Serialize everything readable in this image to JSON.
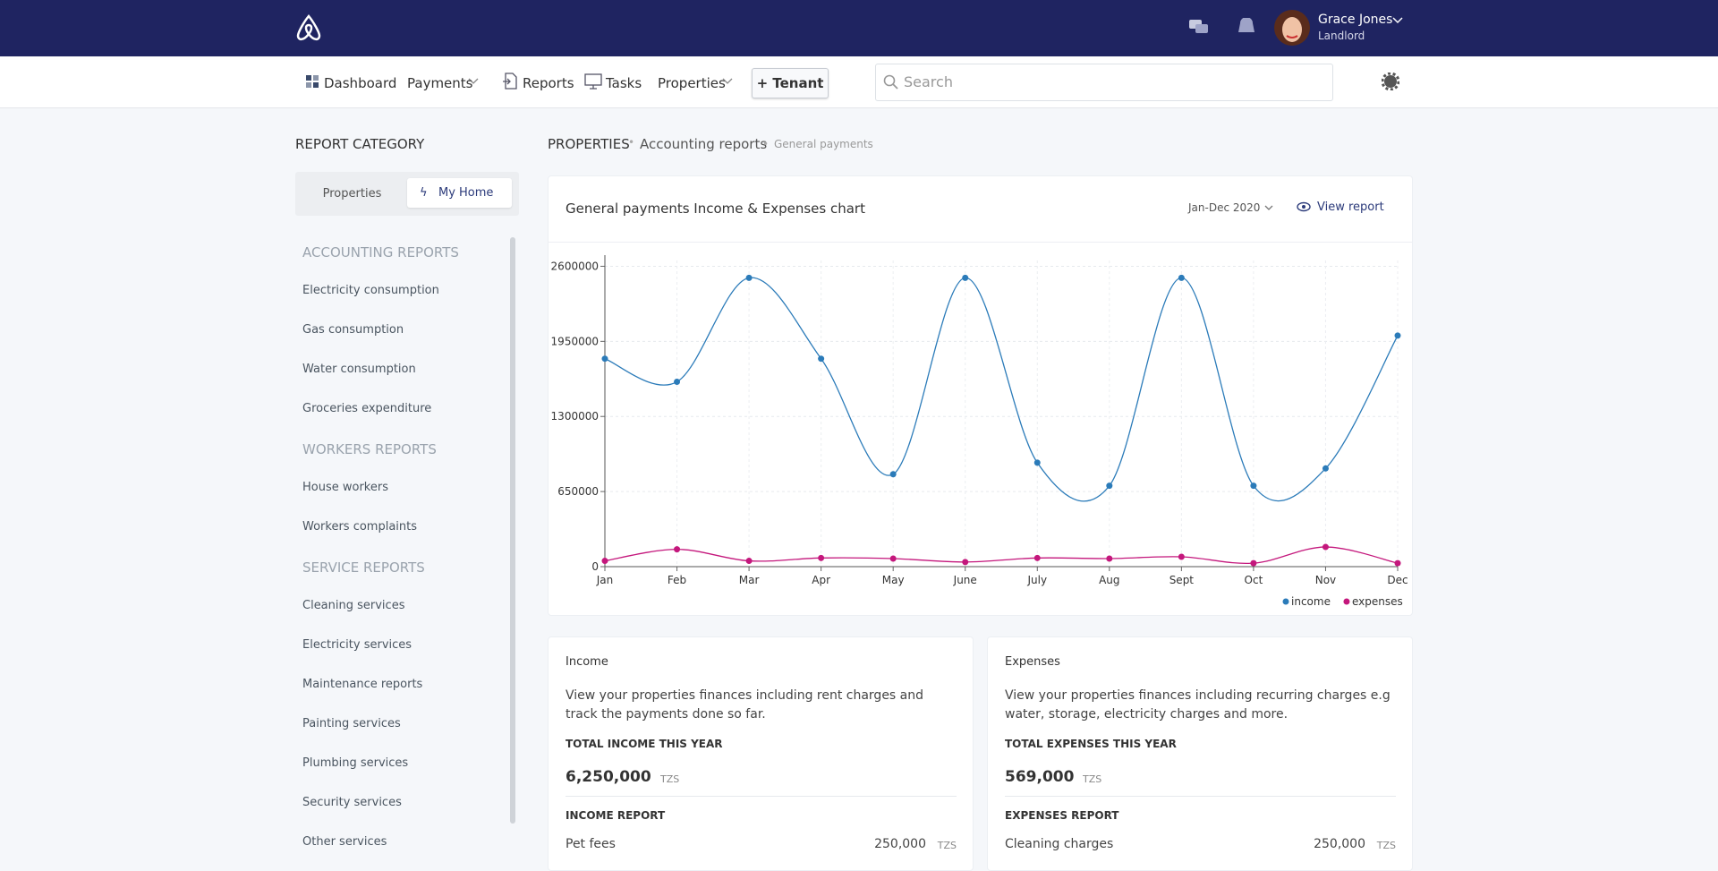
{
  "header": {
    "user_name": "Grace Jones",
    "user_role": "Landlord"
  },
  "nav": {
    "items": [
      "Dashboard",
      "Payments",
      "Reports",
      "Tasks",
      "Properties"
    ],
    "tenant_button": "+ Tenant",
    "search_placeholder": "Search"
  },
  "sidebar": {
    "title": "REPORT CATEGORY",
    "tabs": [
      "Properties",
      "My Home"
    ],
    "groups": [
      {
        "title": "ACCOUNTING REPORTS",
        "items": [
          "Electricity consumption",
          "Gas consumption",
          "Water consumption",
          "Groceries expenditure"
        ]
      },
      {
        "title": "WORKERS REPORTS",
        "items": [
          "House workers",
          "Workers complaints"
        ]
      },
      {
        "title": "SERVICE REPORTS",
        "items": [
          "Cleaning services",
          "Electricity services",
          "Maintenance reports",
          "Painting services",
          "Plumbing services",
          "Security services",
          "Other services"
        ]
      }
    ]
  },
  "breadcrumb": [
    "PROPERTIES",
    "Accounting reports",
    "General payments"
  ],
  "chart_card": {
    "title": "General payments Income & Expenses chart",
    "period": "Jan-Dec 2020",
    "view_report": "View report"
  },
  "chart_data": {
    "type": "line",
    "categories": [
      "Jan",
      "Feb",
      "Mar",
      "Apr",
      "May",
      "June",
      "July",
      "Aug",
      "Sept",
      "Oct",
      "Nov",
      "Dec"
    ],
    "series": [
      {
        "name": "income",
        "color": "#2b7bb9",
        "values": [
          1800000,
          1600000,
          2500000,
          1800000,
          800000,
          2500000,
          900000,
          700000,
          2500000,
          700000,
          850000,
          2000000
        ]
      },
      {
        "name": "expenses",
        "color": "#c4177c",
        "values": [
          50000,
          150000,
          50000,
          75000,
          70000,
          40000,
          75000,
          70000,
          85000,
          30000,
          170000,
          30000
        ]
      }
    ],
    "ylim": [
      0,
      2650000
    ],
    "yticks": [
      0,
      650000,
      1300000,
      1950000,
      2600000
    ],
    "grid": true,
    "legend": "bottom-right"
  },
  "cards": [
    {
      "title": "Income",
      "description": "View your properties finances including rent charges and track the payments done so far.",
      "total_label": "TOTAL INCOME THIS YEAR",
      "total": "6,250,000",
      "currency": "TZS",
      "report_label": "INCOME REPORT",
      "rows": [
        {
          "label": "Pet fees",
          "amount": "250,000",
          "currency": "TZS"
        }
      ]
    },
    {
      "title": "Expenses",
      "description": "View your properties finances including recurring charges e.g water, storage, electricity charges and more.",
      "total_label": "TOTAL EXPENSES THIS YEAR",
      "total": "569,000",
      "currency": "TZS",
      "report_label": "EXPENSES REPORT",
      "rows": [
        {
          "label": "Cleaning charges",
          "amount": "250,000",
          "currency": "TZS"
        }
      ]
    }
  ]
}
